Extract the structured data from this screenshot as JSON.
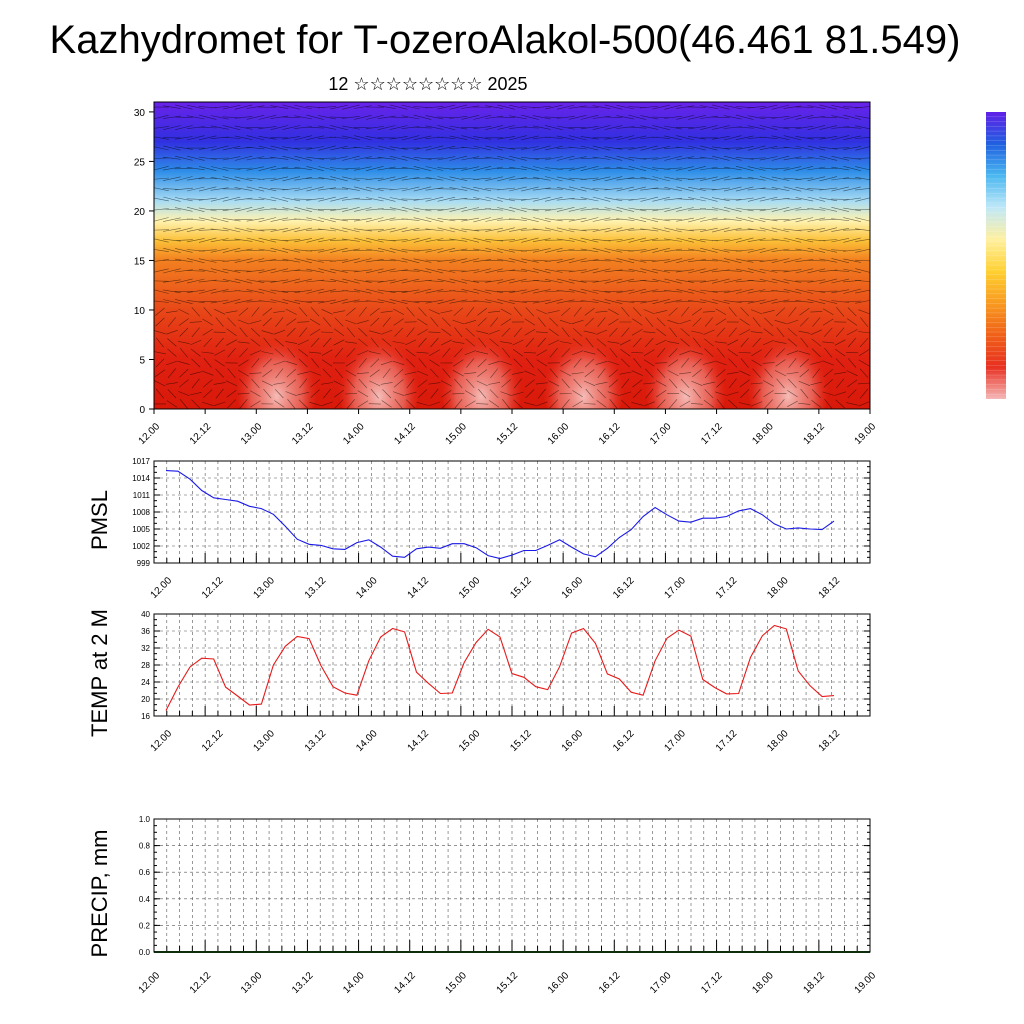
{
  "title": "Kazhydromet for T-ozeroAlakol-500(46.461 81.549)",
  "subtitle": "12 ☆☆☆☆☆☆☆☆ 2025",
  "colors": {
    "pmsl_line": "#1a1ae6",
    "temp_line": "#e61a1a",
    "colorbar": [
      "#f4b8b8",
      "#e83020",
      "#f06018",
      "#f89a20",
      "#ffd030",
      "#fff0a0",
      "#c0e8f8",
      "#4ab8f0",
      "#2060e0",
      "#6020e8"
    ]
  },
  "x_ticks": [
    "12.00",
    "12.12",
    "13.00",
    "13.12",
    "14.00",
    "14.12",
    "15.00",
    "15.12",
    "16.00",
    "16.12",
    "17.00",
    "17.12",
    "18.00",
    "18.12",
    "19.00"
  ],
  "chart_data": [
    {
      "type": "heatmap",
      "title": "",
      "xlabel": "",
      "ylabel": "",
      "y_ticks": [
        "0",
        "5",
        "10",
        "15",
        "20",
        "25",
        "30"
      ],
      "ylim": [
        0,
        31
      ],
      "x_categories": [
        "12.00",
        "12.12",
        "13.00",
        "13.12",
        "14.00",
        "14.12",
        "15.00",
        "15.12",
        "16.00",
        "16.12",
        "17.00",
        "17.12",
        "18.00",
        "18.12",
        "19.00"
      ],
      "description_of_fill": "warm colors near ground, cold violet aloft; overlaid wind vectors",
      "gradient_levels": [
        0,
        5,
        10,
        15,
        17,
        19,
        21,
        24,
        27,
        31
      ],
      "warm_maxima_x": [
        13.2,
        14.2,
        15.2,
        16.2,
        17.2,
        18.2
      ]
    },
    {
      "type": "line",
      "ylabel": "PMSL",
      "y_ticks": [
        "999",
        "1002",
        "1005",
        "1008",
        "1011",
        "1014",
        "1017"
      ],
      "ylim": [
        999,
        1017
      ],
      "x_step": 0.125,
      "series": [
        {
          "values": [
            1015.3,
            1015.2,
            1013.8,
            1011.8,
            1010.5,
            1010.2,
            1009.9,
            1009.0,
            1008.6,
            1007.6,
            1005.5,
            1003.2,
            1002.3,
            1002.1,
            1001.5,
            1001.4,
            1002.6,
            1003.1,
            1001.8,
            1000.2,
            1000.0,
            1001.5,
            1001.8,
            1001.6,
            1002.4,
            1002.4,
            1001.7,
            1000.3,
            999.8,
            1000.4,
            1001.2,
            1001.2,
            1002.1,
            1003.1,
            1001.8,
            1000.6,
            1000.1,
            1001.6,
            1003.5,
            1004.9,
            1007.2,
            1008.8,
            1007.5,
            1006.4,
            1006.2,
            1006.9,
            1006.9,
            1007.2,
            1008.2,
            1008.6,
            1007.5,
            1005.9,
            1005.0,
            1005.2,
            1005.0,
            1004.9,
            1006.4
          ]
        }
      ]
    },
    {
      "type": "line",
      "ylabel": "TEMP at 2 M",
      "y_ticks": [
        "16",
        "20",
        "24",
        "28",
        "32",
        "36",
        "40"
      ],
      "ylim": [
        16,
        40
      ],
      "x_step": 0.125,
      "series": [
        {
          "values": [
            17.3,
            22.8,
            27.5,
            29.6,
            29.4,
            22.8,
            20.7,
            18.6,
            18.8,
            28.0,
            32.4,
            34.7,
            34.2,
            27.8,
            22.9,
            21.4,
            20.9,
            29.0,
            34.6,
            36.6,
            35.8,
            26.3,
            23.7,
            21.3,
            21.4,
            28.6,
            33.3,
            36.4,
            34.6,
            26.0,
            25.1,
            22.9,
            22.2,
            27.6,
            35.5,
            36.6,
            33.1,
            25.9,
            24.7,
            21.6,
            20.9,
            29.0,
            34.3,
            36.2,
            34.8,
            24.6,
            22.7,
            21.2,
            21.3,
            29.8,
            34.9,
            37.3,
            36.5,
            26.6,
            23.1,
            20.6,
            20.8
          ]
        }
      ]
    },
    {
      "type": "bar",
      "ylabel": "PRECIP, mm",
      "y_ticks": [
        "0.0",
        "0.2",
        "0.4",
        "0.6",
        "0.8",
        "1.0"
      ],
      "ylim": [
        0,
        1
      ],
      "values": []
    }
  ]
}
